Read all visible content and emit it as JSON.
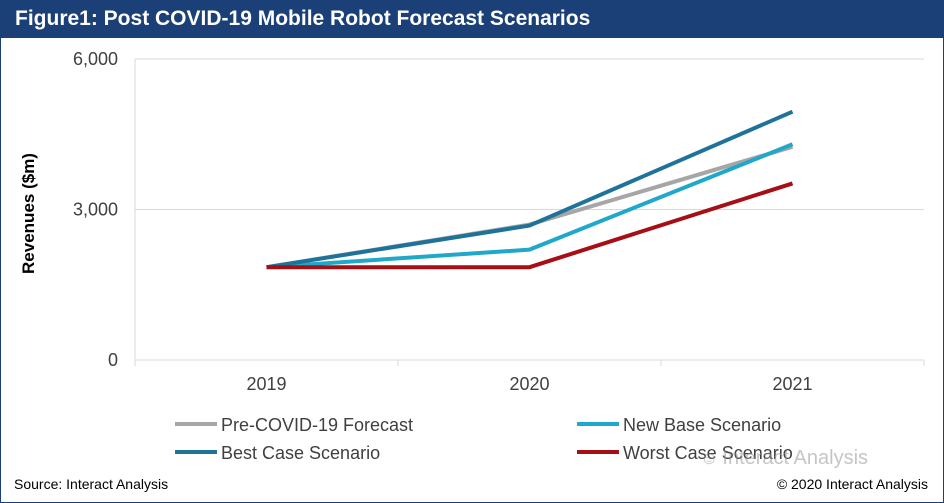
{
  "header": {
    "title": "Figure1: Post COVID-19 Mobile Robot Forecast Scenarios"
  },
  "footer": {
    "source": "Source: Interact Analysis",
    "copyright": "© 2020 Interact Analysis"
  },
  "watermark": {
    "icon": "wechat-icon",
    "text": "Interact Analysis"
  },
  "colors": {
    "title_bg": "#1b3f77",
    "grid": "#d9d9d9",
    "series": [
      "#a6a6a6",
      "#1fa8c9",
      "#1f7399",
      "#a50f15"
    ]
  },
  "chart_data": {
    "type": "line",
    "title": "Figure1: Post COVID-19 Mobile Robot Forecast Scenarios",
    "xlabel": "",
    "ylabel": "Revenues ($m)",
    "categories": [
      "2019",
      "2020",
      "2021"
    ],
    "ylim": [
      0,
      6000
    ],
    "yticks": [
      0,
      3000,
      6000
    ],
    "ytick_labels": [
      "0",
      "3,000",
      "6,000"
    ],
    "grid": true,
    "legend_position": "bottom",
    "series": [
      {
        "name": "Pre-COVID-19 Forecast",
        "values": [
          1850,
          2700,
          4250
        ]
      },
      {
        "name": "New Base Scenario",
        "values": [
          1850,
          2200,
          4300
        ]
      },
      {
        "name": "Best Case Scenario",
        "values": [
          1850,
          2680,
          4950
        ]
      },
      {
        "name": "Worst Case Scenario",
        "values": [
          1850,
          1850,
          3520
        ]
      }
    ]
  }
}
